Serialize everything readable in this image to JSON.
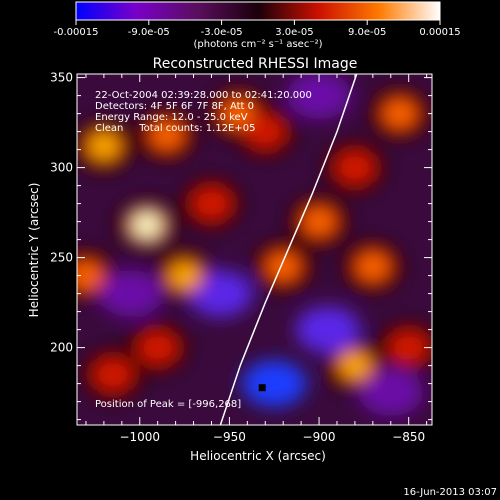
{
  "colorbar": {
    "tick_labels": [
      "-0.00015",
      "-9.0e-05",
      "-3.0e-05",
      "3.0e-05",
      "9.0e-05",
      "0.00015"
    ],
    "tick_values": [
      -0.00015,
      -9e-05,
      -3e-05,
      3e-05,
      9e-05,
      0.00015
    ],
    "range": [
      -0.00015,
      0.00015
    ],
    "unit_label": "(photons cm⁻² s⁻¹ asec⁻²)",
    "colors": [
      "#0000ff",
      "#7a00c8",
      "#5a0e5e",
      "#1a000a",
      "#cc1000",
      "#ff7a00",
      "#ffffff"
    ]
  },
  "chart_data": {
    "type": "heatmap",
    "title": "Reconstructed RHESSI Image",
    "xlabel": "Heliocentric X (arcsec)",
    "ylabel": "Heliocentric Y (arcsec)",
    "xlim": [
      -1035,
      -837
    ],
    "ylim": [
      157,
      352
    ],
    "x_ticks": [
      -1000,
      -950,
      -900,
      -850
    ],
    "x_tick_labels": [
      "−1000",
      "−950",
      "−900",
      "−850"
    ],
    "y_ticks": [
      200,
      250,
      300,
      350
    ],
    "y_tick_labels": [
      "200",
      "250",
      "300",
      "350"
    ],
    "annotations": [
      "22-Oct-2004 02:39:28.000 to 02:41:20.000",
      "Detectors: 4F 5F 6F 7F 8F, Att 0",
      "Energy Range: 12.0 - 25.0 keV",
      "Clean     Total counts: 1.12E+05",
      "Position of Peak = [-996,268]"
    ],
    "peak": {
      "x": -996,
      "y": 268
    },
    "limb_curve": {
      "x": [
        -955,
        -944,
        -930,
        -917,
        -904,
        -890,
        -879
      ],
      "y": [
        157,
        190,
        225,
        255,
        285,
        320,
        352
      ]
    },
    "blobs_positive": [
      {
        "x": -996,
        "y": 268,
        "value": 0.00015
      },
      {
        "x": -1020,
        "y": 312,
        "value": 0.00012
      },
      {
        "x": -985,
        "y": 318,
        "value": 0.0001
      },
      {
        "x": -1030,
        "y": 240,
        "value": 9e-05
      },
      {
        "x": -975,
        "y": 240,
        "value": 0.00011
      },
      {
        "x": -960,
        "y": 280,
        "value": 8e-05
      },
      {
        "x": -945,
        "y": 330,
        "value": 0.0001
      },
      {
        "x": -990,
        "y": 200,
        "value": 7e-05
      },
      {
        "x": -920,
        "y": 245,
        "value": 0.0001
      },
      {
        "x": -900,
        "y": 270,
        "value": 9e-05
      },
      {
        "x": -870,
        "y": 245,
        "value": 0.0001
      },
      {
        "x": -880,
        "y": 300,
        "value": 8e-05
      },
      {
        "x": -855,
        "y": 330,
        "value": 9e-05
      },
      {
        "x": -880,
        "y": 190,
        "value": 0.00013
      },
      {
        "x": -850,
        "y": 200,
        "value": 7e-05
      },
      {
        "x": -1015,
        "y": 185,
        "value": 6e-05
      },
      {
        "x": -930,
        "y": 320,
        "value": 7e-05
      }
    ],
    "blobs_negative": [
      {
        "x": -925,
        "y": 180,
        "value": -0.00014
      },
      {
        "x": -895,
        "y": 210,
        "value": -9e-05
      },
      {
        "x": -955,
        "y": 230,
        "value": -8e-05
      },
      {
        "x": -1005,
        "y": 230,
        "value": -6e-05
      },
      {
        "x": -860,
        "y": 175,
        "value": -7e-05
      },
      {
        "x": -900,
        "y": 340,
        "value": -6e-05
      }
    ]
  },
  "footer": {
    "timestamp": "16-Jun-2013 03:07"
  }
}
